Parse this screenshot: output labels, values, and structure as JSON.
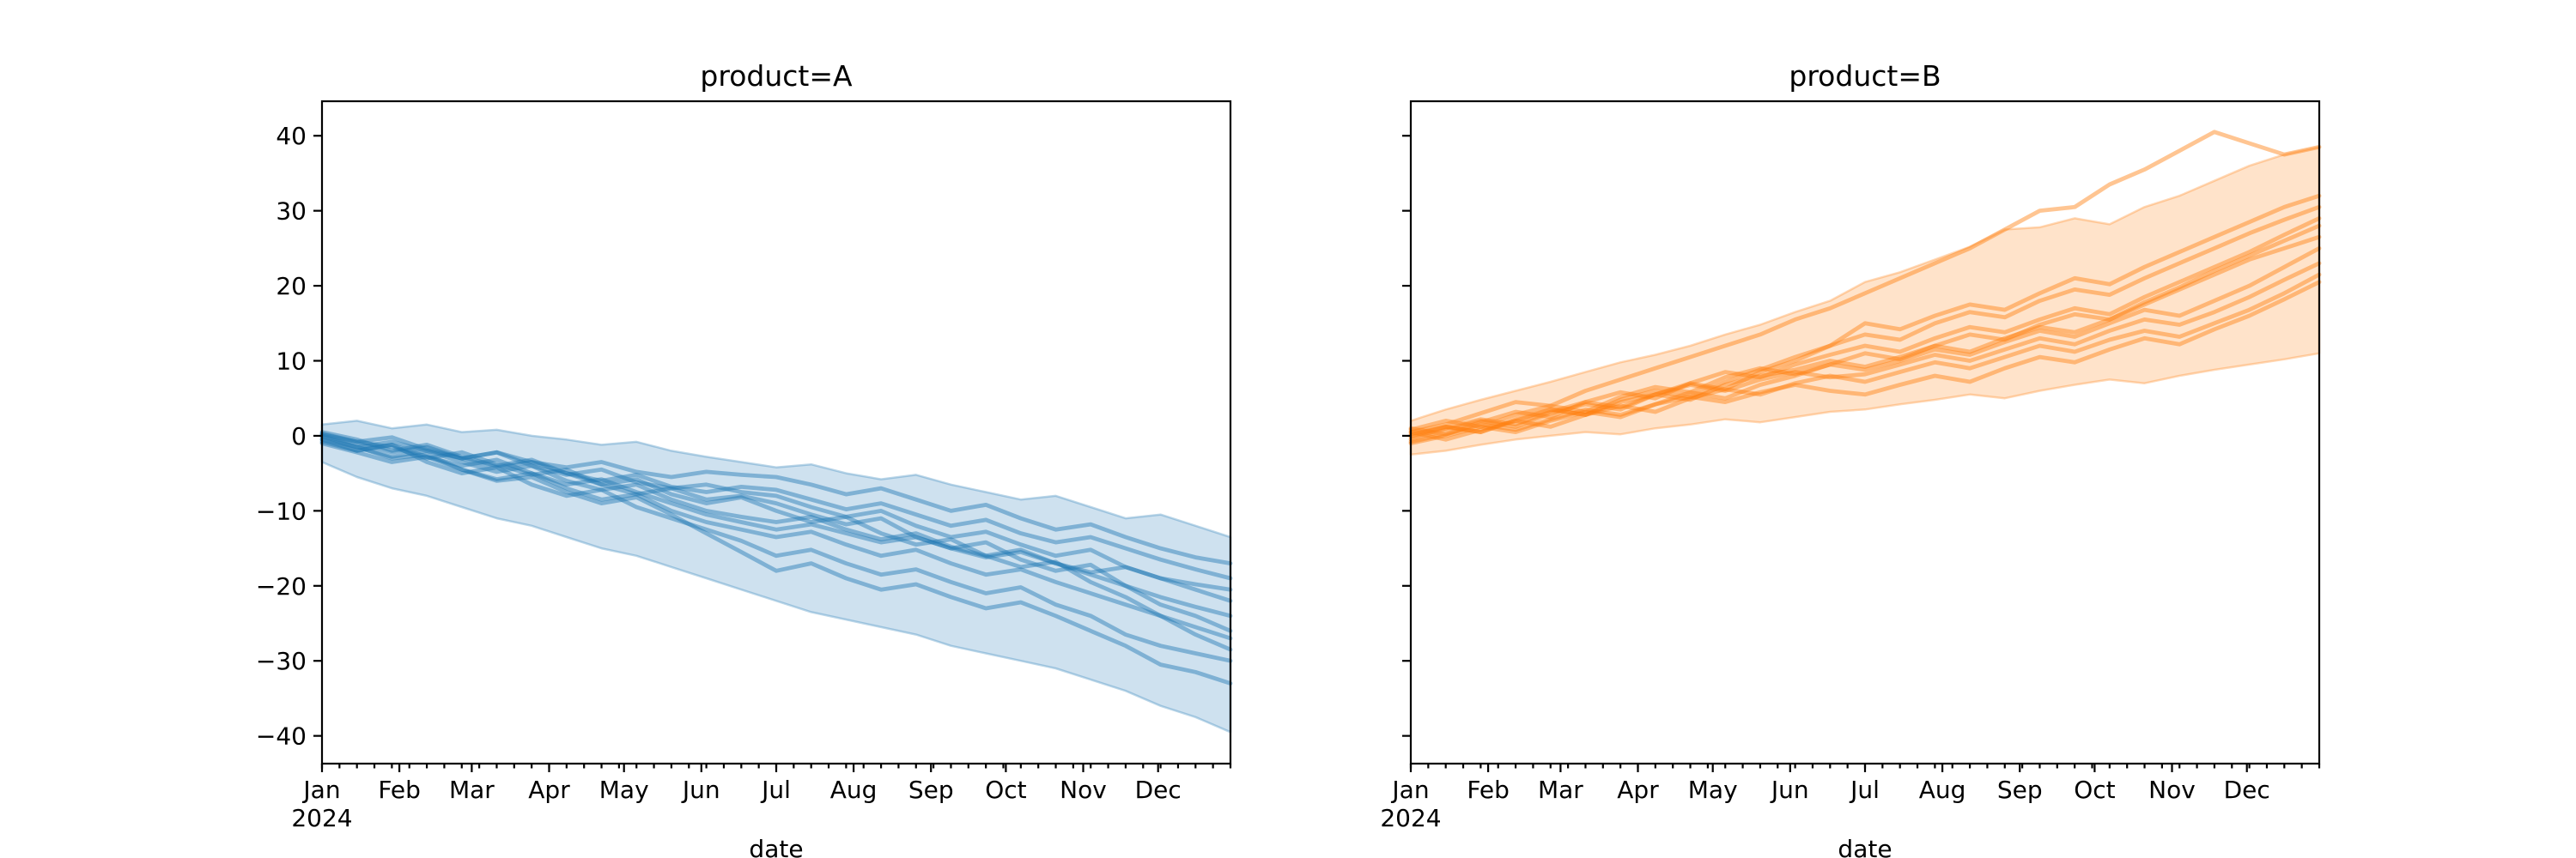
{
  "figure": {
    "background": "#ffffff",
    "xlabel": "date",
    "x_first_tick_year": "2024",
    "x_tick_labels": [
      "Jan",
      "Feb",
      "Mar",
      "Apr",
      "May",
      "Jun",
      "Jul",
      "Aug",
      "Sep",
      "Oct",
      "Nov",
      "Dec"
    ],
    "y_tick_labels": [
      "40",
      "30",
      "20",
      "10",
      "0",
      "−10",
      "−20",
      "−30",
      "−40"
    ]
  },
  "chart_data": [
    {
      "type": "line",
      "title": "product=A",
      "xlabel": "date",
      "ylabel": "",
      "legend": "none",
      "grid": false,
      "color": "#1f77b4",
      "line_alpha": 0.45,
      "band_alpha": 0.22,
      "x_unit": "day_of_year_2024",
      "xlim_days": [
        0,
        364
      ],
      "ylim": [
        -43.7,
        44.6
      ],
      "yticks": [
        40,
        30,
        20,
        10,
        0,
        -10,
        -20,
        -30,
        -40
      ],
      "month_tick_days": [
        0,
        31,
        60,
        91,
        121,
        152,
        182,
        213,
        244,
        274,
        305,
        335
      ],
      "minor_tick_interval_days": 7,
      "x": [
        0,
        14,
        28,
        42,
        56,
        70,
        84,
        98,
        112,
        126,
        140,
        154,
        168,
        182,
        196,
        210,
        224,
        238,
        252,
        266,
        280,
        294,
        308,
        322,
        336,
        350,
        364
      ],
      "band": {
        "upper": [
          1.5,
          2.0,
          1.0,
          1.5,
          0.5,
          0.8,
          0.0,
          -0.5,
          -1.2,
          -0.8,
          -2.0,
          -2.8,
          -3.5,
          -4.2,
          -3.8,
          -5.0,
          -5.8,
          -5.2,
          -6.5,
          -7.5,
          -8.5,
          -8.0,
          -9.5,
          -11.0,
          -10.5,
          -12.0,
          -13.5
        ],
        "lower": [
          -3.5,
          -5.5,
          -7.0,
          -8.0,
          -9.5,
          -11.0,
          -12.0,
          -13.5,
          -15.0,
          -16.0,
          -17.5,
          -19.0,
          -20.5,
          -22.0,
          -23.5,
          -24.5,
          -25.5,
          -26.5,
          -28.0,
          -29.0,
          -30.0,
          -31.0,
          -32.5,
          -34.0,
          -36.0,
          -37.5,
          -39.5
        ]
      },
      "series": [
        {
          "name": "u01",
          "values": [
            0.0,
            -1.5,
            -3.0,
            -2.5,
            -4.5,
            -6.0,
            -5.5,
            -7.5,
            -9.0,
            -8.2,
            -10.5,
            -13.0,
            -15.5,
            -18.0,
            -17.0,
            -19.0,
            -20.5,
            -19.8,
            -21.5,
            -23.0,
            -22.2,
            -24.0,
            -26.0,
            -28.0,
            -30.5,
            -31.5,
            -33.0
          ]
        },
        {
          "name": "u02",
          "values": [
            -0.5,
            -2.0,
            -1.2,
            -3.5,
            -5.0,
            -4.2,
            -6.5,
            -8.0,
            -7.2,
            -9.5,
            -11.0,
            -12.5,
            -14.0,
            -16.0,
            -15.2,
            -17.0,
            -18.5,
            -17.8,
            -19.5,
            -21.0,
            -20.2,
            -22.5,
            -24.0,
            -26.5,
            -28.0,
            -29.0,
            -30.0
          ]
        },
        {
          "name": "u03",
          "values": [
            0.5,
            -0.5,
            -2.0,
            -1.2,
            -2.8,
            -4.0,
            -3.2,
            -5.0,
            -6.5,
            -5.8,
            -7.8,
            -9.0,
            -8.2,
            -10.0,
            -11.5,
            -10.8,
            -13.0,
            -14.5,
            -13.8,
            -16.0,
            -17.5,
            -16.8,
            -19.5,
            -21.5,
            -24.0,
            -26.5,
            -28.5
          ]
        },
        {
          "name": "u04",
          "values": [
            -1.0,
            -2.2,
            -3.5,
            -2.8,
            -4.5,
            -5.8,
            -5.0,
            -7.0,
            -8.5,
            -7.8,
            -10.0,
            -11.5,
            -12.5,
            -13.5,
            -12.8,
            -14.5,
            -16.0,
            -15.2,
            -17.0,
            -18.5,
            -17.8,
            -19.5,
            -21.0,
            -22.5,
            -24.0,
            -25.5,
            -27.0
          ]
        },
        {
          "name": "u05",
          "values": [
            0.2,
            -0.8,
            -1.5,
            -3.0,
            -2.2,
            -3.8,
            -5.2,
            -4.5,
            -6.5,
            -7.8,
            -7.0,
            -8.5,
            -8.0,
            -9.0,
            -10.5,
            -11.8,
            -11.0,
            -13.5,
            -15.0,
            -14.2,
            -16.5,
            -18.0,
            -17.2,
            -20.0,
            -22.5,
            -24.0,
            -26.0
          ]
        },
        {
          "name": "u06",
          "values": [
            -0.2,
            -1.5,
            -2.8,
            -2.0,
            -3.5,
            -4.8,
            -4.0,
            -6.0,
            -7.2,
            -6.5,
            -8.5,
            -10.0,
            -10.8,
            -11.5,
            -10.8,
            -12.5,
            -13.8,
            -13.0,
            -14.8,
            -16.0,
            -15.2,
            -17.0,
            -18.5,
            -20.0,
            -21.5,
            -22.8,
            -24.0
          ]
        },
        {
          "name": "u07",
          "values": [
            0.3,
            -0.8,
            -0.2,
            -1.8,
            -3.0,
            -2.2,
            -4.0,
            -5.2,
            -4.5,
            -6.2,
            -7.0,
            -6.5,
            -7.5,
            -8.0,
            -9.5,
            -10.8,
            -10.0,
            -12.0,
            -13.5,
            -12.8,
            -14.5,
            -16.0,
            -15.2,
            -17.5,
            -19.0,
            -20.5,
            -22.0
          ]
        },
        {
          "name": "u08",
          "values": [
            -0.8,
            -2.0,
            -1.2,
            -2.8,
            -4.0,
            -3.2,
            -5.0,
            -6.5,
            -5.8,
            -7.5,
            -9.0,
            -10.5,
            -11.5,
            -12.5,
            -11.8,
            -13.0,
            -14.2,
            -13.5,
            -15.0,
            -16.2,
            -15.5,
            -17.0,
            -18.2,
            -17.5,
            -19.0,
            -19.8,
            -20.5
          ]
        },
        {
          "name": "u09",
          "values": [
            0.0,
            -1.0,
            -2.2,
            -1.5,
            -3.0,
            -4.2,
            -3.5,
            -5.0,
            -6.0,
            -5.2,
            -6.8,
            -7.5,
            -6.8,
            -7.2,
            -8.5,
            -9.8,
            -9.0,
            -10.5,
            -12.0,
            -11.2,
            -13.0,
            -14.2,
            -13.5,
            -15.0,
            -16.5,
            -17.8,
            -19.0
          ]
        },
        {
          "name": "u10",
          "values": [
            -0.5,
            -1.5,
            -0.8,
            -2.0,
            -3.0,
            -2.2,
            -3.5,
            -4.2,
            -3.5,
            -4.8,
            -5.5,
            -4.8,
            -5.2,
            -5.5,
            -6.5,
            -7.8,
            -7.0,
            -8.5,
            -10.0,
            -9.2,
            -11.0,
            -12.5,
            -11.8,
            -13.5,
            -15.0,
            -16.2,
            -17.0
          ]
        }
      ]
    },
    {
      "type": "line",
      "title": "product=B",
      "xlabel": "date",
      "ylabel": "",
      "legend": "none",
      "grid": false,
      "color": "#ff7f0e",
      "line_alpha": 0.45,
      "band_alpha": 0.22,
      "x_unit": "day_of_year_2024",
      "xlim_days": [
        0,
        364
      ],
      "ylim": [
        -43.7,
        44.6
      ],
      "yticks": [
        40,
        30,
        20,
        10,
        0,
        -10,
        -20,
        -30,
        -40
      ],
      "month_tick_days": [
        0,
        31,
        60,
        91,
        121,
        152,
        182,
        213,
        244,
        274,
        305,
        335
      ],
      "minor_tick_interval_days": 7,
      "x": [
        0,
        14,
        28,
        42,
        56,
        70,
        84,
        98,
        112,
        126,
        140,
        154,
        168,
        182,
        196,
        210,
        224,
        238,
        252,
        266,
        280,
        294,
        308,
        322,
        336,
        350,
        364
      ],
      "band": {
        "upper": [
          2.0,
          3.5,
          4.8,
          6.0,
          7.2,
          8.5,
          9.8,
          10.8,
          12.0,
          13.5,
          14.8,
          16.5,
          18.0,
          20.5,
          21.8,
          23.5,
          25.2,
          27.5,
          27.8,
          29.0,
          28.2,
          30.5,
          32.0,
          34.0,
          36.0,
          37.5,
          38.5
        ],
        "lower": [
          -2.5,
          -2.0,
          -1.2,
          -0.5,
          0.0,
          0.5,
          0.2,
          1.0,
          1.5,
          2.2,
          1.8,
          2.5,
          3.2,
          3.5,
          4.2,
          4.8,
          5.5,
          5.0,
          6.0,
          6.8,
          7.5,
          7.0,
          8.0,
          8.8,
          9.5,
          10.2,
          11.0
        ]
      },
      "series": [
        {
          "name": "u01",
          "values": [
            0.5,
            1.5,
            3.0,
            4.5,
            4.0,
            6.0,
            7.5,
            9.0,
            10.5,
            12.0,
            13.5,
            15.5,
            17.0,
            19.0,
            21.0,
            23.0,
            25.0,
            27.5,
            30.0,
            30.5,
            33.5,
            35.5,
            38.0,
            40.5,
            39.0,
            37.5,
            38.5
          ]
        },
        {
          "name": "u02",
          "values": [
            -0.5,
            0.8,
            2.0,
            1.2,
            3.0,
            4.2,
            3.5,
            5.5,
            7.0,
            6.2,
            8.5,
            10.0,
            12.0,
            15.0,
            14.2,
            16.0,
            17.5,
            16.8,
            19.0,
            21.0,
            20.2,
            22.5,
            24.5,
            26.5,
            28.5,
            30.5,
            32.0
          ]
        },
        {
          "name": "u03",
          "values": [
            0.2,
            1.2,
            0.5,
            2.2,
            3.5,
            2.8,
            4.8,
            6.0,
            5.2,
            7.2,
            8.8,
            10.5,
            12.0,
            13.5,
            12.8,
            15.0,
            16.5,
            15.8,
            18.0,
            19.5,
            18.8,
            21.0,
            23.0,
            25.0,
            27.0,
            28.8,
            30.5
          ]
        },
        {
          "name": "u04",
          "values": [
            1.0,
            0.2,
            1.8,
            3.2,
            2.5,
            4.5,
            5.8,
            5.0,
            7.0,
            8.5,
            7.8,
            9.5,
            10.8,
            12.0,
            11.2,
            13.0,
            14.5,
            13.8,
            15.5,
            17.0,
            16.2,
            18.5,
            20.5,
            22.5,
            24.5,
            26.8,
            29.0
          ]
        },
        {
          "name": "u05",
          "values": [
            -1.0,
            0.0,
            1.2,
            0.5,
            2.0,
            3.2,
            2.5,
            4.2,
            5.8,
            5.0,
            6.8,
            8.0,
            9.5,
            11.0,
            10.2,
            12.0,
            13.5,
            12.8,
            14.8,
            16.2,
            15.5,
            17.8,
            19.8,
            22.0,
            24.0,
            26.0,
            28.0
          ]
        },
        {
          "name": "u06",
          "values": [
            0.0,
            1.2,
            0.5,
            2.0,
            3.5,
            2.8,
            4.5,
            5.5,
            4.8,
            6.8,
            8.0,
            8.8,
            10.0,
            9.2,
            10.5,
            12.0,
            11.2,
            13.0,
            14.5,
            13.8,
            15.5,
            17.5,
            19.5,
            21.5,
            23.5,
            25.0,
            26.5
          ]
        },
        {
          "name": "u07",
          "values": [
            0.8,
            2.0,
            1.2,
            2.8,
            4.0,
            3.2,
            5.2,
            6.5,
            5.8,
            7.8,
            9.0,
            8.2,
            9.5,
            8.8,
            10.0,
            11.5,
            10.8,
            12.5,
            14.0,
            13.2,
            15.0,
            16.8,
            16.0,
            18.0,
            20.0,
            22.5,
            25.0
          ]
        },
        {
          "name": "u08",
          "values": [
            -0.2,
            1.0,
            2.2,
            1.5,
            3.2,
            4.5,
            3.8,
            5.5,
            6.8,
            6.0,
            7.5,
            8.5,
            7.8,
            8.2,
            9.5,
            10.8,
            10.0,
            11.5,
            13.0,
            12.2,
            14.0,
            15.5,
            14.8,
            16.5,
            18.5,
            20.8,
            23.0
          ]
        },
        {
          "name": "u09",
          "values": [
            0.5,
            -0.5,
            0.8,
            2.0,
            1.2,
            2.8,
            4.0,
            3.2,
            5.0,
            6.2,
            5.5,
            7.0,
            8.0,
            7.2,
            8.5,
            9.8,
            9.0,
            10.5,
            12.0,
            11.2,
            12.8,
            14.0,
            13.2,
            15.0,
            16.8,
            19.0,
            21.5
          ]
        },
        {
          "name": "u10",
          "values": [
            -0.8,
            0.2,
            1.5,
            0.8,
            2.2,
            3.5,
            2.8,
            4.2,
            5.2,
            4.5,
            5.8,
            6.8,
            6.0,
            5.5,
            6.8,
            8.0,
            7.2,
            9.0,
            10.5,
            9.8,
            11.5,
            13.0,
            12.2,
            14.2,
            16.0,
            18.2,
            20.5
          ]
        }
      ]
    }
  ]
}
